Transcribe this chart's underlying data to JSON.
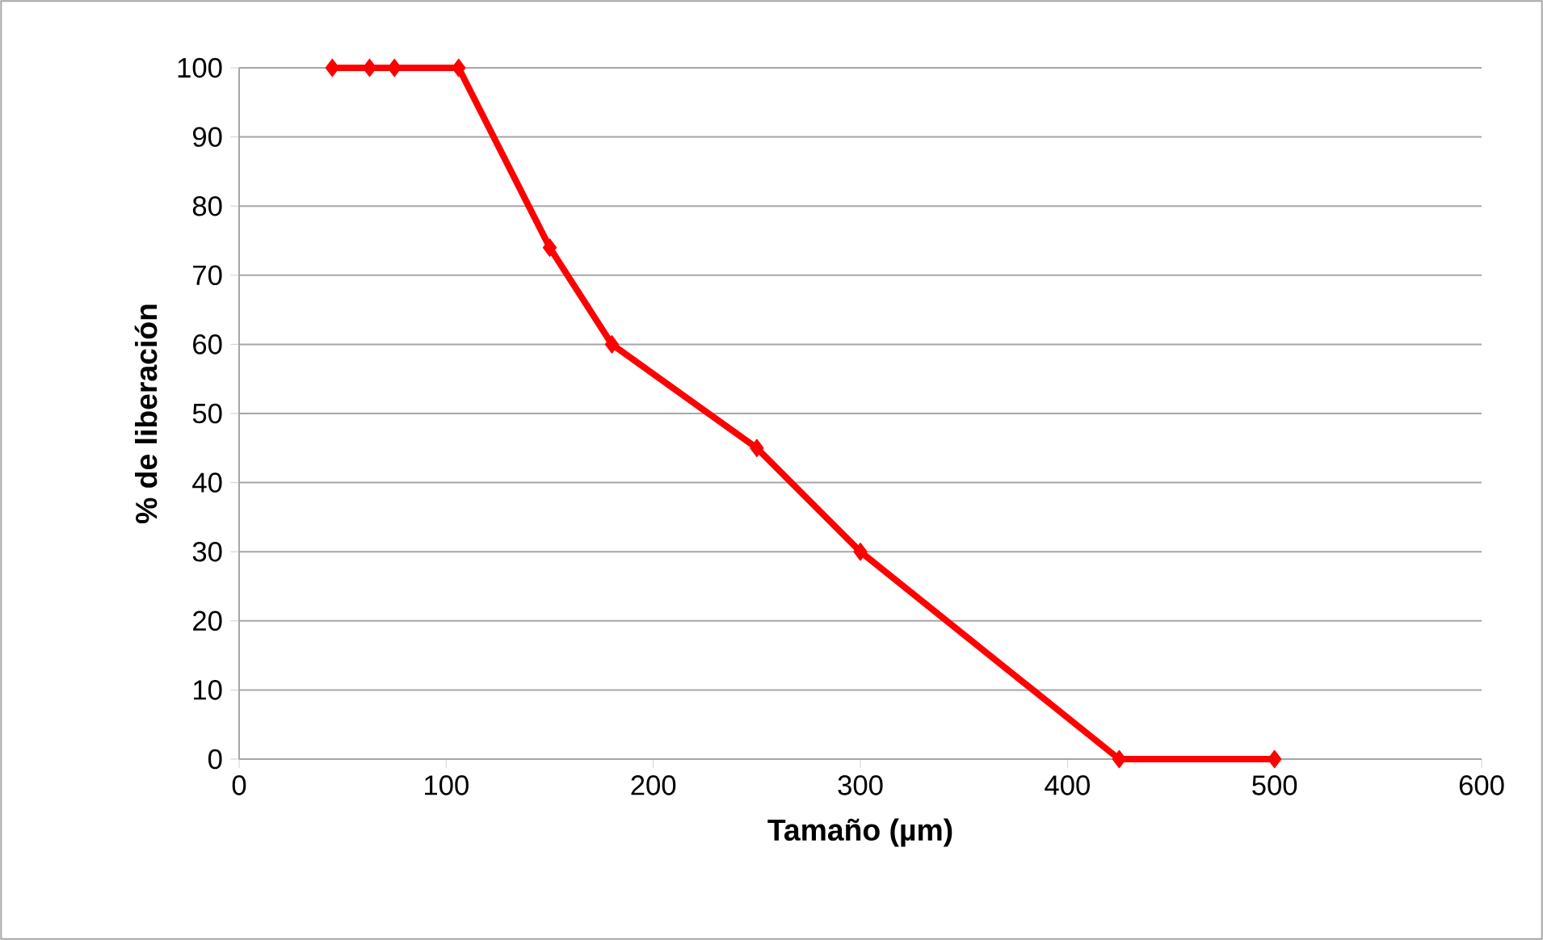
{
  "chart_data": {
    "type": "line",
    "xlabel": "Tamaño (µm)",
    "ylabel": "% de liberación",
    "x": [
      45,
      63,
      75,
      106,
      150,
      180,
      250,
      300,
      425,
      500
    ],
    "series": [
      {
        "color": "#ff0000",
        "values": [
          100,
          100,
          100,
          100,
          74,
          60,
          45,
          30,
          0,
          0
        ]
      }
    ],
    "xlim": [
      0,
      600
    ],
    "xticks": [
      0,
      100,
      200,
      300,
      400,
      500,
      600
    ],
    "ylim": [
      0,
      100
    ],
    "yticks": [
      0,
      10,
      20,
      30,
      40,
      50,
      60,
      70,
      80,
      90,
      100
    ],
    "grid": "y",
    "marker": "diamond",
    "line_style": "solid"
  }
}
